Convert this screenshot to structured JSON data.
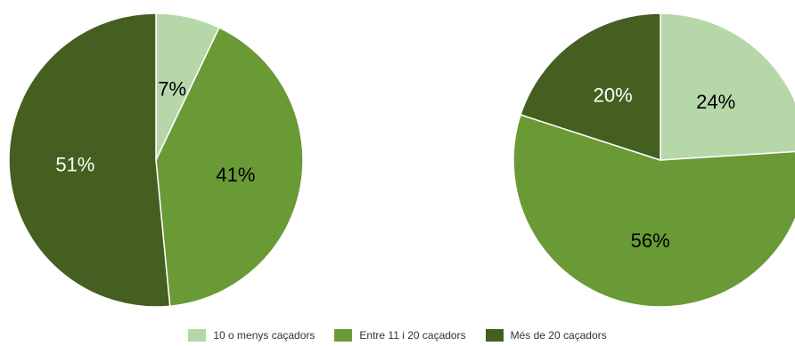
{
  "chart_data": [
    {
      "type": "pie",
      "categories": [
        "10 o menys caçadors",
        "Entre 11 i 20 caçadors",
        "Més de 20 caçadors"
      ],
      "values": [
        7,
        41,
        51
      ],
      "labels": [
        "7%",
        "41%",
        "51%"
      ],
      "colors": [
        "#b6d7a8",
        "#6a9a35",
        "#445f1f"
      ]
    },
    {
      "type": "pie",
      "categories": [
        "10 o menys caçadors",
        "Entre 11 i 20 caçadors",
        "Més de 20 caçadors"
      ],
      "values": [
        24,
        56,
        20
      ],
      "labels": [
        "24%",
        "56%",
        "20%"
      ],
      "colors": [
        "#b6d7a8",
        "#6a9a35",
        "#445f1f"
      ]
    }
  ],
  "legend": {
    "position": "bottom",
    "items": [
      {
        "label": "10 o menys caçadors",
        "color": "#b6d7a8"
      },
      {
        "label": "Entre 11 i 20 caçadors",
        "color": "#6a9a35"
      },
      {
        "label": "Més de 20 caçadors",
        "color": "#445f1f"
      }
    ]
  }
}
